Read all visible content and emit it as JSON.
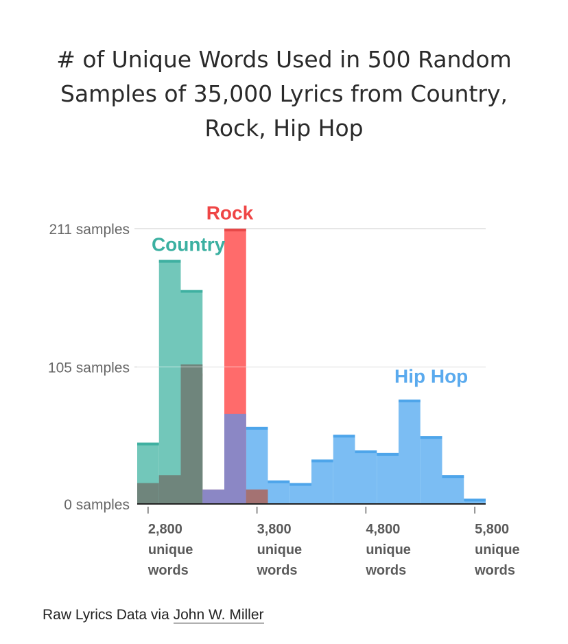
{
  "title": "# of Unique Words Used in 500 Random Samples of 35,000 Lyrics from Country, Rock, Hip Hop",
  "caption": {
    "prefix": "Raw Lyrics Data via ",
    "link_text": "John W. Miller"
  },
  "chart_data": {
    "type": "histogram",
    "title": "# of Unique Words Used in 500 Random Samples of 35,000 Lyrics from Country, Rock, Hip Hop",
    "xlabel": "",
    "ylabel": "",
    "xlim": [
      2700,
      5900
    ],
    "ylim": [
      0,
      211
    ],
    "bin_width": 200,
    "y_ticks": [
      {
        "value": 0,
        "label": "0 samples"
      },
      {
        "value": 105,
        "label": "105 samples"
      },
      {
        "value": 211,
        "label": "211 samples"
      }
    ],
    "x_ticks": [
      {
        "value": 2800,
        "label": [
          "2,800",
          "unique",
          "words"
        ]
      },
      {
        "value": 3800,
        "label": [
          "3,800",
          "unique",
          "words"
        ]
      },
      {
        "value": 4800,
        "label": [
          "4,800",
          "unique",
          "words"
        ]
      },
      {
        "value": 5800,
        "label": [
          "5,800",
          "unique",
          "words"
        ]
      }
    ],
    "grid": true,
    "series": [
      {
        "name": "Hip Hop",
        "color": "#7bbdf3",
        "edge": "#4ea5ea",
        "label_color": "#5aaaee",
        "label_anchor": [
          5400,
          93
        ],
        "bins": [
          {
            "x0": 3300,
            "count": 11
          },
          {
            "x0": 3500,
            "count": 69
          },
          {
            "x0": 3700,
            "count": 59
          },
          {
            "x0": 3900,
            "count": 18
          },
          {
            "x0": 4100,
            "count": 16
          },
          {
            "x0": 4300,
            "count": 34
          },
          {
            "x0": 4500,
            "count": 53
          },
          {
            "x0": 4700,
            "count": 41
          },
          {
            "x0": 4900,
            "count": 39
          },
          {
            "x0": 5100,
            "count": 80
          },
          {
            "x0": 5300,
            "count": 52
          },
          {
            "x0": 5500,
            "count": 22
          },
          {
            "x0": 5700,
            "count": 4
          }
        ]
      },
      {
        "name": "Rock",
        "color": "#ff6b6b",
        "edge": "#e74848",
        "label_color": "#ef4545",
        "label_anchor": [
          3550,
          218
        ],
        "bins": [
          {
            "x0": 3100,
            "count": 100
          },
          {
            "x0": 3300,
            "count": 11
          },
          {
            "x0": 3500,
            "count": 211
          },
          {
            "x0": 3700,
            "count": 11
          }
        ]
      },
      {
        "name": "Country",
        "color": "#72c7ba",
        "edge": "#3fb0a1",
        "label_color": "#3bb0a1",
        "label_anchor": [
          3170,
          194
        ],
        "bins": [
          {
            "x0": 2700,
            "count": 47
          },
          {
            "x0": 2900,
            "count": 187
          },
          {
            "x0": 3100,
            "count": 164
          }
        ]
      }
    ],
    "overlaps": [
      {
        "series": [
          "Country",
          "Rock"
        ],
        "color": "#6f857c",
        "bins": [
          {
            "x0": 2700,
            "count": 16
          },
          {
            "x0": 2900,
            "count": 22
          },
          {
            "x0": 3100,
            "count": 107
          }
        ]
      },
      {
        "series": [
          "Rock",
          "Hip Hop"
        ],
        "color": "#8b87c5",
        "bins": [
          {
            "x0": 3300,
            "count": 11
          },
          {
            "x0": 3500,
            "count": 69
          }
        ]
      },
      {
        "series": [
          "Rock"
        ],
        "color": "#a47272",
        "bins": [
          {
            "x0": 3700,
            "count": 11
          }
        ]
      }
    ]
  }
}
